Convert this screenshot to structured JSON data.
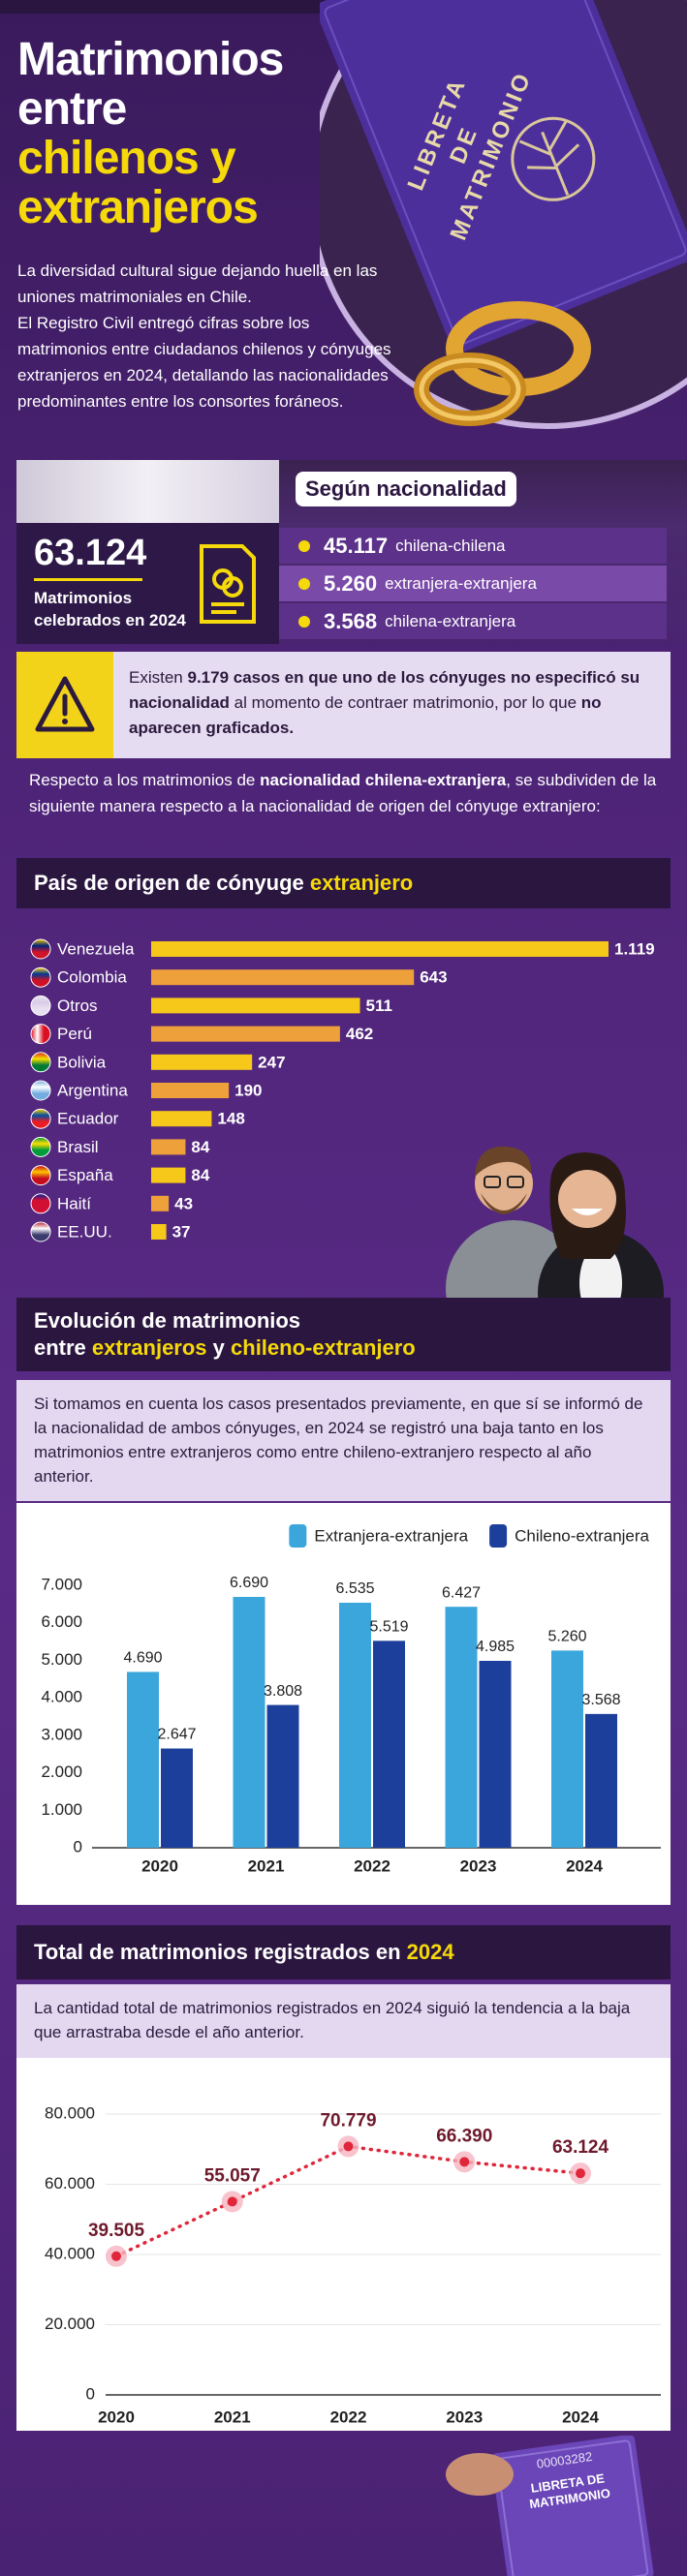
{
  "header": {
    "title_lines": [
      {
        "text": "Matrimonios"
      },
      {
        "text": "entre"
      },
      {
        "text": "chilenos y",
        "highlight": true
      },
      {
        "text": "extranjeros",
        "highlight": true
      }
    ],
    "intro": [
      "La diversidad cultural sigue dejando huella en las uniones matrimoniales en Chile.",
      "El Registro Civil entregó cifras sobre los matrimonios entre ciudadanos chilenos y cónyuges extranjeros en 2024, detallando las nacionalidades predominantes entre los consortes foráneos."
    ],
    "book_label": [
      "LIBRETA",
      "DE",
      "MATRIMONIO"
    ]
  },
  "summary": {
    "total": "63.124",
    "total_label": "Matrimonios celebrados en 2024",
    "breakdown_title": "Según nacionalidad",
    "breakdown": [
      {
        "value": "45.117",
        "label": "chilena-chilena"
      },
      {
        "value": "5.260",
        "label": "extranjera-extranjera"
      },
      {
        "value": "3.568",
        "label": "chilena-extranjera"
      }
    ]
  },
  "notice": [
    {
      "text": "Existen "
    },
    {
      "text": "9.179 casos en que uno de los cónyuges no especificó su nacionalidad",
      "bold": true
    },
    {
      "text": " al momento de contraer matrimonio, por lo que "
    },
    {
      "text": "no aparecen graficados.",
      "bold": true
    }
  ],
  "origin_intro": [
    {
      "text": "Respecto a los matrimonios de "
    },
    {
      "text": "nacionalidad chilena-extranjera",
      "bold": true
    },
    {
      "text": ", se subdividen de la siguiente manera respecto a la nacionalidad de origen del cónyuge extranjero:"
    }
  ],
  "chart_data": [
    {
      "type": "hbar",
      "title": [
        [
          {
            "text": "País de origen de cónyuge "
          },
          {
            "text": "extranjero",
            "highlight": true
          }
        ]
      ],
      "categories": [
        "Venezuela",
        "Colombia",
        "Otros",
        "Perú",
        "Bolivia",
        "Argentina",
        "Ecuador",
        "Brasil",
        "España",
        "Haití",
        "EE.UU."
      ],
      "values": [
        1119,
        643,
        511,
        462,
        247,
        190,
        148,
        84,
        84,
        43,
        37
      ],
      "value_labels": [
        "1.119",
        "643",
        "511",
        "462",
        "247",
        "190",
        "148",
        "84",
        "84",
        "43",
        "37"
      ],
      "colors": [
        "#f5c81a",
        "#eea03a",
        "#f5c81a",
        "#eea03a",
        "#f5c81a",
        "#eea03a",
        "#f5c81a",
        "#eea03a",
        "#f5c81a",
        "#eea03a",
        "#f5c81a"
      ]
    },
    {
      "type": "bar",
      "title": [
        [
          {
            "text": "Evolución de matrimonios"
          }
        ],
        [
          {
            "text": "entre "
          },
          {
            "text": "extranjeros",
            "highlight": true
          },
          {
            "text": " y "
          },
          {
            "text": "chileno-extranjero",
            "highlight": true
          }
        ]
      ],
      "description": "Si tomamos en cuenta los casos presentados previamente, en que sí se informó de la nacionalidad de ambos cónyuges, en 2024 se registró una baja tanto en los matrimonios entre extranjeros como entre chileno-extranjero respecto al año anterior.",
      "categories": [
        "2020",
        "2021",
        "2022",
        "2023",
        "2024"
      ],
      "series": [
        {
          "name": "Extranjera-extranjera",
          "color": "#3ba6dc",
          "values": [
            4690,
            6690,
            6535,
            6427,
            5260
          ],
          "value_labels": [
            "4.690",
            "6.690",
            "6.535",
            "6.427",
            "5.260"
          ]
        },
        {
          "name": "Chileno-extranjera",
          "color": "#1d3f9c",
          "values": [
            2647,
            3808,
            5519,
            4985,
            3568
          ],
          "value_labels": [
            "2.647",
            "3.808",
            "5.519",
            "4.985",
            "3.568"
          ]
        }
      ],
      "ylim": [
        0,
        7000
      ],
      "yticks": [
        0,
        {
          "value": 1000,
          "label": "1.000"
        },
        {
          "value": 2000,
          "label": "2.000"
        },
        {
          "value": 3000,
          "label": "3.000"
        },
        {
          "value": 4000,
          "label": "4.000"
        },
        {
          "value": 5000,
          "label": "5.000"
        },
        {
          "value": 6000,
          "label": "6.000"
        },
        {
          "value": 7000,
          "label": "7.000"
        }
      ],
      "grid": false,
      "legend": "top-right"
    },
    {
      "type": "line",
      "title": [
        [
          {
            "text": "Total de matrimonios registrados en "
          },
          {
            "text": "2024",
            "highlight": true
          }
        ]
      ],
      "description": "La cantidad total de matrimonios registrados en 2024 siguió la tendencia a la baja que arrastraba desde el año anterior.",
      "categories": [
        "2020",
        "2021",
        "2022",
        "2023",
        "2024"
      ],
      "values": [
        39505,
        55057,
        70779,
        66390,
        63124
      ],
      "value_labels": [
        "39.505",
        "55.057",
        "70.779",
        "66.390",
        "63.124"
      ],
      "color": "#e0263a",
      "ylim": [
        0,
        80000
      ],
      "yticks": [
        0,
        {
          "value": 20000,
          "label": "20.000"
        },
        {
          "value": 40000,
          "label": "40.000"
        },
        {
          "value": 60000,
          "label": "60.000"
        },
        {
          "value": 80000,
          "label": "80.000"
        }
      ],
      "grid": true
    }
  ],
  "footer_book": {
    "number": "00003282",
    "label": [
      "LIBRETA DE",
      "MATRIMONIO"
    ]
  }
}
